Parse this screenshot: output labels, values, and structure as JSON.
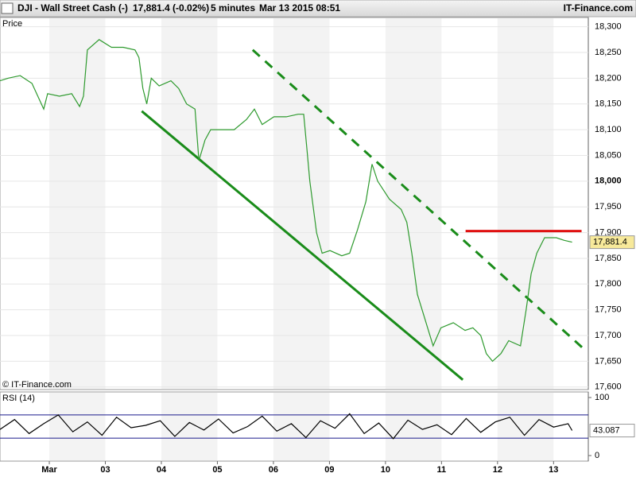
{
  "header": {
    "symbol": "DJI - Wall Street Cash (-)",
    "quote": "17,881.4 (-0.02%)",
    "interval": "5 minutes",
    "timestamp": "Mar 13 2015 08:51",
    "brand": "IT-Finance.com"
  },
  "chart_data": [
    {
      "type": "line",
      "title": "Price",
      "credit": "© IT-Finance.com",
      "x": [
        0.12,
        0.26,
        0.48,
        0.69,
        0.9,
        0.97,
        1.18,
        1.4,
        1.54,
        1.61,
        1.68,
        1.89,
        2.11,
        2.32,
        2.53,
        2.6,
        2.67,
        2.74,
        2.82,
        2.96,
        3.17,
        3.31,
        3.45,
        3.6,
        3.67,
        3.78,
        3.88,
        4.09,
        4.3,
        4.52,
        4.66,
        4.8,
        5.01,
        5.23,
        5.44,
        5.54,
        5.6,
        5.65,
        5.77,
        5.87,
        6.01,
        6.22,
        6.36,
        6.5,
        6.65,
        6.76,
        6.86,
        7.07,
        7.28,
        7.38,
        7.47,
        7.57,
        7.71,
        7.85,
        7.99,
        8.21,
        8.42,
        8.56,
        8.7,
        8.8,
        8.91,
        9.06,
        9.2,
        9.41,
        9.51,
        9.6,
        9.7,
        9.84,
        10.05,
        10.19,
        10.33
      ],
      "values": [
        18195,
        18200,
        18205,
        18190,
        18140,
        18170,
        18165,
        18170,
        18145,
        18165,
        18255,
        18275,
        18260,
        18260,
        18255,
        18240,
        18180,
        18150,
        18200,
        18185,
        18195,
        18180,
        18150,
        18140,
        18040,
        18080,
        18100,
        18100,
        18100,
        18120,
        18140,
        18110,
        18125,
        18125,
        18130,
        18130,
        18060,
        18000,
        17900,
        17860,
        17865,
        17855,
        17860,
        17905,
        17960,
        18033,
        18000,
        17965,
        17945,
        17920,
        17860,
        17780,
        17730,
        17680,
        17715,
        17725,
        17710,
        17715,
        17700,
        17665,
        17650,
        17665,
        17690,
        17680,
        17750,
        17820,
        17860,
        17890,
        17890,
        17885,
        17881.4
      ],
      "last_value_label": "17,881.4",
      "color": "#2e9a2e",
      "xlim": [
        0.12,
        10.62
      ],
      "xticks": [
        {
          "value": 1,
          "label": "Mar"
        },
        {
          "value": 2,
          "label": "03"
        },
        {
          "value": 3,
          "label": "04"
        },
        {
          "value": 4,
          "label": "05"
        },
        {
          "value": 5,
          "label": "06"
        },
        {
          "value": 6,
          "label": "09"
        },
        {
          "value": 7,
          "label": "10"
        },
        {
          "value": 8,
          "label": "11"
        },
        {
          "value": 9,
          "label": "12"
        },
        {
          "value": 10,
          "label": "13"
        }
      ],
      "ylim": [
        17595,
        18318
      ],
      "yticks": [
        {
          "value": 17600,
          "label": "17,600"
        },
        {
          "value": 17650,
          "label": "17,650"
        },
        {
          "value": 17700,
          "label": "17,700"
        },
        {
          "value": 17750,
          "label": "17,750"
        },
        {
          "value": 17800,
          "label": "17,800"
        },
        {
          "value": 17850,
          "label": "17,850"
        },
        {
          "value": 17900,
          "label": "17,900"
        },
        {
          "value": 17950,
          "label": "17,950"
        },
        {
          "value": 18000,
          "label": "18,000"
        },
        {
          "value": 18050,
          "label": "18,050"
        },
        {
          "value": 18100,
          "label": "18,100"
        },
        {
          "value": 18150,
          "label": "18,150"
        },
        {
          "value": 18200,
          "label": "18,200"
        },
        {
          "value": 18250,
          "label": "18,250"
        },
        {
          "value": 18300,
          "label": "18,300"
        }
      ],
      "grid": true,
      "trendlines": [
        {
          "color": "#1a8c1a",
          "style": "solid",
          "x": [
            2.65,
            8.38
          ],
          "y": [
            18136,
            17614
          ]
        },
        {
          "color": "#1a8c1a",
          "style": "dashed",
          "x": [
            4.63,
            10.55
          ],
          "y": [
            18255,
            17673
          ]
        },
        {
          "color": "#e01010",
          "style": "solid",
          "x": [
            8.43,
            10.5
          ],
          "y": [
            17903,
            17903
          ]
        }
      ]
    },
    {
      "type": "line",
      "title": "RSI (14)",
      "x": [
        0.12,
        0.38,
        0.64,
        0.9,
        1.16,
        1.42,
        1.68,
        1.94,
        2.2,
        2.46,
        2.72,
        2.98,
        3.24,
        3.5,
        3.76,
        4.02,
        4.28,
        4.54,
        4.8,
        5.06,
        5.32,
        5.58,
        5.84,
        6.1,
        6.36,
        6.62,
        6.88,
        7.14,
        7.4,
        7.66,
        7.92,
        8.18,
        8.44,
        8.7,
        8.96,
        9.22,
        9.48,
        9.74,
        10.0,
        10.26,
        10.33
      ],
      "values": [
        45,
        62,
        38,
        55,
        70,
        41,
        58,
        35,
        66,
        48,
        52,
        60,
        33,
        57,
        44,
        63,
        39,
        50,
        68,
        42,
        55,
        31,
        60,
        47,
        72,
        38,
        56,
        29,
        61,
        45,
        53,
        36,
        64,
        40,
        58,
        66,
        35,
        62,
        49,
        55,
        43.087
      ],
      "color": "#000000",
      "xlim": [
        0.12,
        10.62
      ],
      "ylim": [
        0,
        100
      ],
      "yticks": [
        0,
        100
      ],
      "bands": [
        30,
        70
      ],
      "band_color": "#1a1a8c"
    }
  ]
}
